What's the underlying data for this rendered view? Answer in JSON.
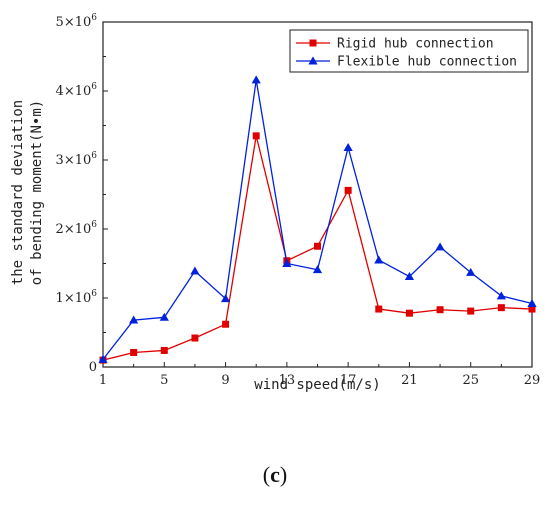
{
  "chart_data": {
    "type": "line",
    "xlabel": "wind speed(m/s)",
    "ylabel_lines": [
      "the standard deviation",
      "of bending moment(N•m)"
    ],
    "xlim": [
      1,
      29
    ],
    "ylim": [
      0,
      5000000
    ],
    "x_ticks": [
      1,
      5,
      9,
      13,
      17,
      21,
      25,
      29
    ],
    "y_ticks": [
      {
        "value": 0,
        "mant": "0",
        "exp": ""
      },
      {
        "value": 1000000,
        "mant": "1×10",
        "exp": "6"
      },
      {
        "value": 2000000,
        "mant": "2×10",
        "exp": "6"
      },
      {
        "value": 3000000,
        "mant": "3×10",
        "exp": "6"
      },
      {
        "value": 4000000,
        "mant": "4×10",
        "exp": "6"
      },
      {
        "value": 5000000,
        "mant": "5×10",
        "exp": "6"
      }
    ],
    "x": [
      1,
      3,
      5,
      7,
      9,
      11,
      13,
      15,
      17,
      19,
      21,
      23,
      25,
      27,
      29
    ],
    "series": [
      {
        "name": "Rigid hub connection",
        "color": "#e00000",
        "marker": "square",
        "values": [
          100000,
          210000,
          240000,
          420000,
          620000,
          3350000,
          1540000,
          1750000,
          2560000,
          840000,
          780000,
          830000,
          810000,
          860000,
          840000
        ]
      },
      {
        "name": "Flexible hub connection",
        "color": "#0022dd",
        "marker": "triangle",
        "values": [
          110000,
          680000,
          720000,
          1390000,
          990000,
          4160000,
          1500000,
          1410000,
          3180000,
          1550000,
          1310000,
          1740000,
          1370000,
          1030000,
          920000
        ]
      }
    ],
    "legend_position": "top-right",
    "grid": false
  },
  "caption": {
    "open": "(",
    "letter": "c",
    "close": ")"
  }
}
